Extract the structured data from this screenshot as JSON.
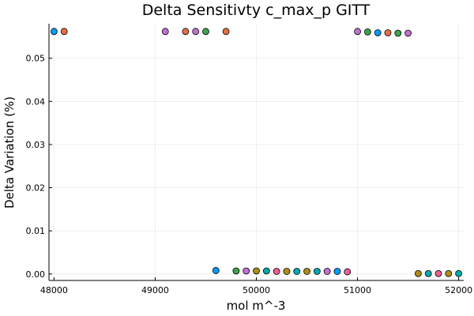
{
  "chart_data": {
    "type": "scatter",
    "title": "Delta Sensitivty c_max_p GITT",
    "xlabel": "mol m^-3",
    "ylabel": "Delta Variation (%)",
    "xlim": [
      47950,
      52050
    ],
    "ylim": [
      -0.0015,
      0.058
    ],
    "xticks": [
      48000,
      49000,
      50000,
      51000,
      52000
    ],
    "yticks": [
      0.0,
      0.01,
      0.02,
      0.03,
      0.04,
      0.05
    ],
    "ytick_labels": [
      "0.00",
      "0.01",
      "0.02",
      "0.03",
      "0.04",
      "0.05"
    ],
    "grid": true,
    "legend": "none",
    "palette": [
      "#009AF9",
      "#E26F46",
      "#3DA44D",
      "#C271D2",
      "#AC8E18",
      "#00A9AD",
      "#ED5E93"
    ],
    "points": [
      {
        "x": 48000,
        "y": 0.0562,
        "color": "#009AF9"
      },
      {
        "x": 48100,
        "y": 0.0562,
        "color": "#E26F46"
      },
      {
        "x": 49100,
        "y": 0.0562,
        "color": "#C271D2"
      },
      {
        "x": 49300,
        "y": 0.0562,
        "color": "#E26F46"
      },
      {
        "x": 49400,
        "y": 0.0562,
        "color": "#C271D2"
      },
      {
        "x": 49500,
        "y": 0.0562,
        "color": "#3DA44D"
      },
      {
        "x": 49700,
        "y": 0.0562,
        "color": "#E26F46"
      },
      {
        "x": 49600,
        "y": 0.0008,
        "color": "#009AF9"
      },
      {
        "x": 49800,
        "y": 0.0007,
        "color": "#3DA44D"
      },
      {
        "x": 49900,
        "y": 0.0007,
        "color": "#C271D2"
      },
      {
        "x": 50000,
        "y": 0.0007,
        "color": "#AC8E18"
      },
      {
        "x": 50100,
        "y": 0.0007,
        "color": "#00A9AD"
      },
      {
        "x": 50200,
        "y": 0.0006,
        "color": "#ED5E93"
      },
      {
        "x": 50300,
        "y": 0.0006,
        "color": "#AC8E18"
      },
      {
        "x": 50400,
        "y": 0.0006,
        "color": "#00A9AD"
      },
      {
        "x": 50500,
        "y": 0.0006,
        "color": "#AC8E18"
      },
      {
        "x": 50600,
        "y": 0.0006,
        "color": "#00A9AD"
      },
      {
        "x": 50700,
        "y": 0.0006,
        "color": "#C271D2"
      },
      {
        "x": 50800,
        "y": 0.0006,
        "color": "#009AF9"
      },
      {
        "x": 50900,
        "y": 0.0005,
        "color": "#ED5E93"
      },
      {
        "x": 51000,
        "y": 0.0562,
        "color": "#C271D2"
      },
      {
        "x": 51100,
        "y": 0.0561,
        "color": "#3DA44D"
      },
      {
        "x": 51200,
        "y": 0.0559,
        "color": "#009AF9"
      },
      {
        "x": 51300,
        "y": 0.0559,
        "color": "#E26F46"
      },
      {
        "x": 51400,
        "y": 0.0558,
        "color": "#3DA44D"
      },
      {
        "x": 51500,
        "y": 0.0558,
        "color": "#C271D2"
      },
      {
        "x": 51600,
        "y": 0.0001,
        "color": "#AC8E18"
      },
      {
        "x": 51700,
        "y": 0.0001,
        "color": "#00A9AD"
      },
      {
        "x": 51800,
        "y": 0.0001,
        "color": "#ED5E93"
      },
      {
        "x": 51900,
        "y": 0.0001,
        "color": "#AC8E18"
      },
      {
        "x": 52000,
        "y": 0.0001,
        "color": "#00A9AD"
      }
    ]
  }
}
